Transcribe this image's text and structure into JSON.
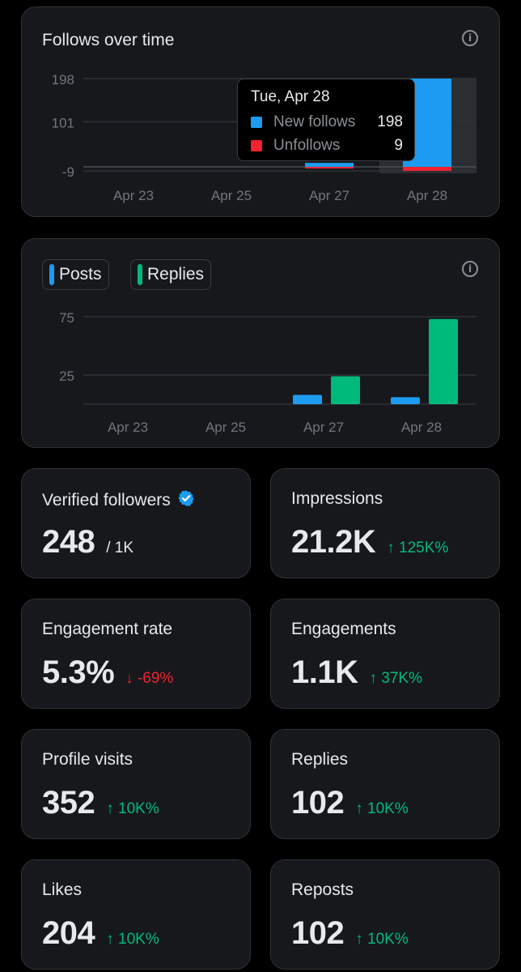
{
  "follows_chart": {
    "title": "Follows over time",
    "tooltip": {
      "date": "Tue, Apr 28",
      "rows": [
        {
          "label": "New follows",
          "value": "198",
          "color": "#1d9bf0"
        },
        {
          "label": "Unfollows",
          "value": "9",
          "color": "#f4212e"
        }
      ]
    }
  },
  "activity_chart": {
    "legend": [
      {
        "label": "Posts",
        "color": "#1d9bf0"
      },
      {
        "label": "Replies",
        "color": "#00ba7c"
      }
    ]
  },
  "chart_data": [
    {
      "type": "bar",
      "title": "Follows over time",
      "x_tick_labels": [
        "Apr 23",
        "Apr 25",
        "Apr 27",
        "Apr 28"
      ],
      "y_tick_labels": [
        "198",
        "101",
        "-9"
      ],
      "ylim": [
        -9,
        198
      ],
      "categories": [
        "Apr 27",
        "Apr 28"
      ],
      "series": [
        {
          "name": "New follows",
          "values": [
            9,
            198
          ],
          "color": "#1d9bf0"
        },
        {
          "name": "Unfollows",
          "values": [
            -2,
            -9
          ],
          "color": "#f4212e"
        }
      ],
      "grid": true
    },
    {
      "type": "bar",
      "x_tick_labels": [
        "Apr 23",
        "Apr 25",
        "Apr 27",
        "Apr 28"
      ],
      "y_tick_labels": [
        "75",
        "25"
      ],
      "ylim": [
        0,
        75
      ],
      "categories": [
        "Apr 27",
        "Apr 28"
      ],
      "series": [
        {
          "name": "Posts",
          "values": [
            8,
            6
          ],
          "color": "#1d9bf0"
        },
        {
          "name": "Replies",
          "values": [
            24,
            73
          ],
          "color": "#00ba7c"
        }
      ],
      "grid": true,
      "legend": "top-left"
    }
  ],
  "stats": [
    {
      "label": "Verified followers",
      "value": "248",
      "sub": "/ 1K",
      "verified": true
    },
    {
      "label": "Impressions",
      "value": "21.2K",
      "change": "↑ 125K%",
      "direction": "up"
    },
    {
      "label": "Engagement rate",
      "value": "5.3%",
      "change": "↓ -69%",
      "direction": "down"
    },
    {
      "label": "Engagements",
      "value": "1.1K",
      "change": "↑ 37K%",
      "direction": "up"
    },
    {
      "label": "Profile visits",
      "value": "352",
      "change": "↑ 10K%",
      "direction": "up"
    },
    {
      "label": "Replies",
      "value": "102",
      "change": "↑ 10K%",
      "direction": "up"
    },
    {
      "label": "Likes",
      "value": "204",
      "change": "↑ 10K%",
      "direction": "up"
    },
    {
      "label": "Reposts",
      "value": "102",
      "change": "↑ 10K%",
      "direction": "up"
    }
  ]
}
